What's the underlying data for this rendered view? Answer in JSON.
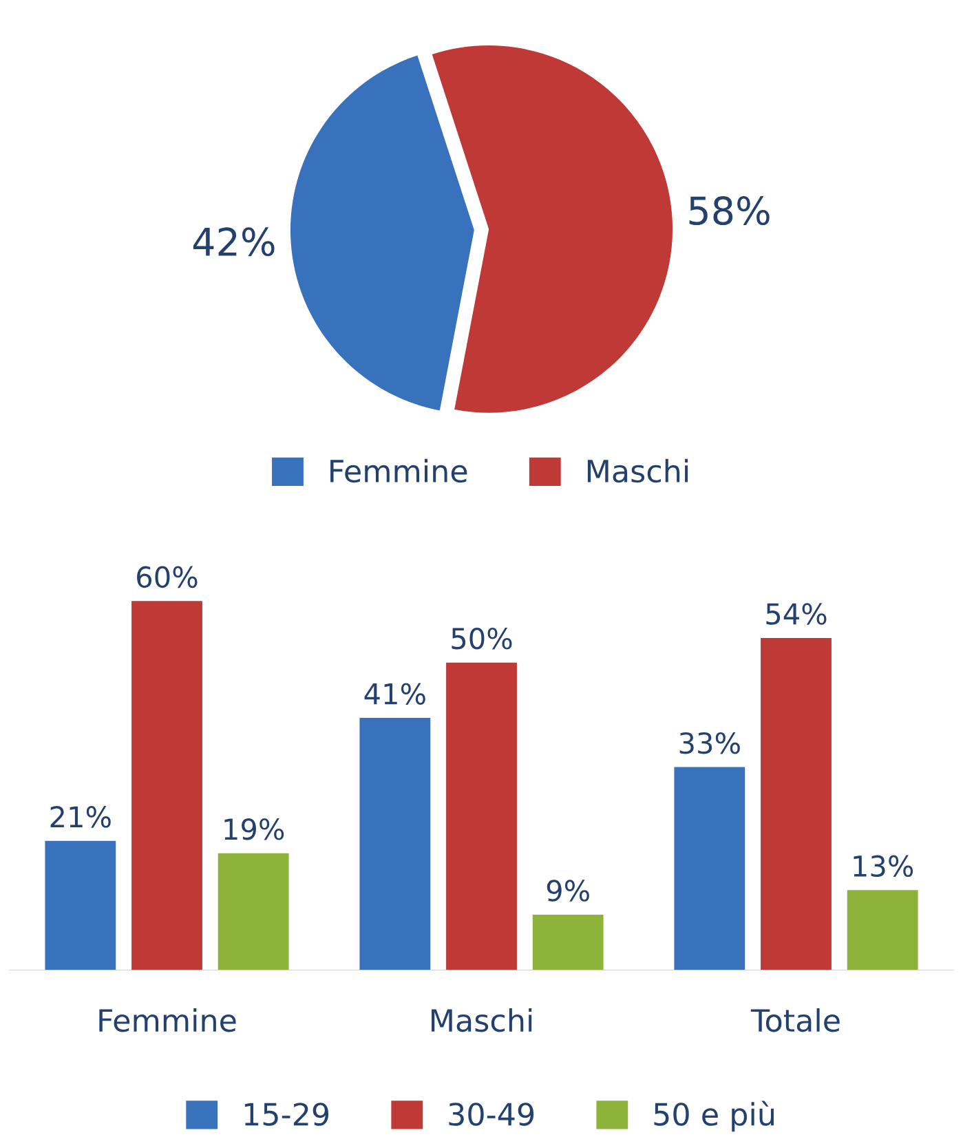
{
  "chart_data": [
    {
      "type": "pie",
      "categories": [
        "Femmine",
        "Maschi"
      ],
      "values": [
        42,
        58
      ],
      "value_labels": [
        "42%",
        "58%"
      ],
      "colors": [
        "#3872bd",
        "#bf3a36"
      ],
      "legend": "bottom"
    },
    {
      "type": "bar",
      "categories": [
        "Femmine",
        "Maschi",
        "Totale"
      ],
      "series": [
        {
          "name": "15-29",
          "color": "#3872bd",
          "values": [
            21,
            41,
            33
          ],
          "value_labels": [
            "21%",
            "41%",
            "33%"
          ]
        },
        {
          "name": "30-49",
          "color": "#bf3a36",
          "values": [
            60,
            50,
            54
          ],
          "value_labels": [
            "60%",
            "50%",
            "54%"
          ]
        },
        {
          "name": "50 e più",
          "color": "#8db33a",
          "values": [
            19,
            9,
            13
          ],
          "value_labels": [
            "19%",
            "9%",
            "13%"
          ]
        }
      ],
      "legend": "bottom"
    }
  ]
}
